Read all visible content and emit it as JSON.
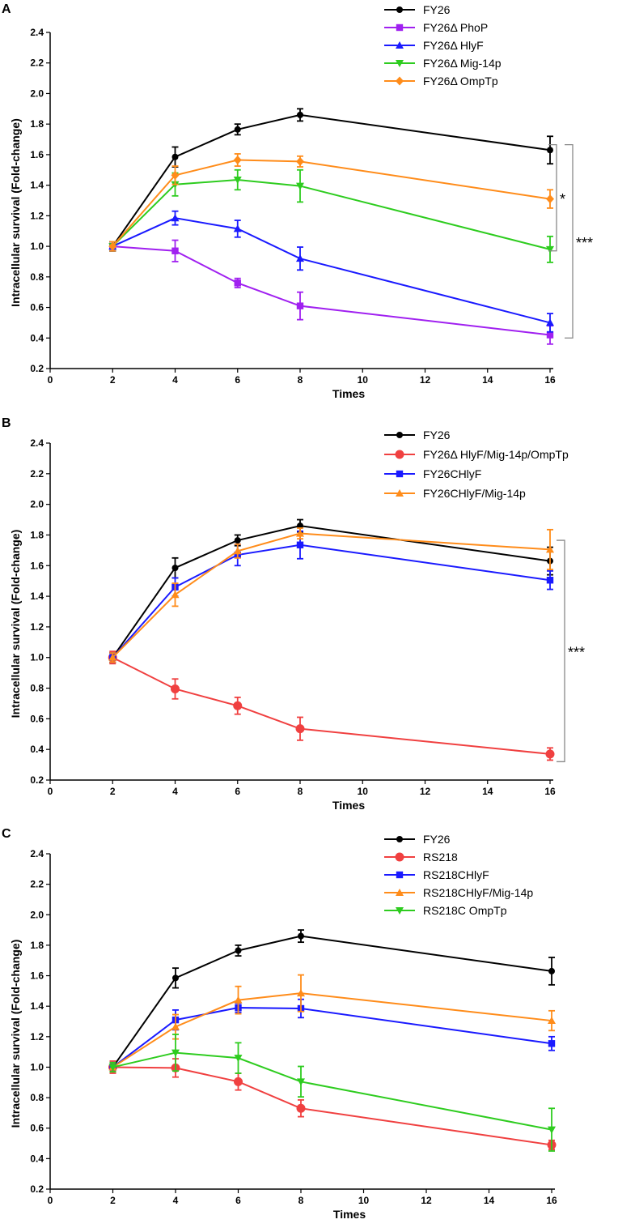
{
  "figure": {
    "chart_data": [
      {
        "type": "line",
        "panel": "A",
        "xlabel": "Times",
        "ylabel": "Intracellular survival (Fold-change)",
        "xlim": [
          0,
          16
        ],
        "ylim": [
          0.2,
          2.4
        ],
        "xticks": [
          0,
          2,
          4,
          6,
          8,
          10,
          12,
          14,
          16
        ],
        "yticks": [
          0.2,
          0.4,
          0.6,
          0.8,
          1.0,
          1.2,
          1.4,
          1.6,
          1.8,
          2.0,
          2.2,
          2.4
        ],
        "ytick_labels": [
          "0.2",
          "0.4",
          "0.6",
          "0.8",
          "1.0",
          "1.2",
          "1.4",
          "1.6",
          "1.8",
          "2.0",
          "2.2",
          "2.4"
        ],
        "x": [
          2,
          4,
          6,
          8,
          16
        ],
        "series": [
          {
            "name": "FY26",
            "color": "#000000",
            "marker": "circle",
            "values": [
              1.0,
              1.585,
              1.765,
              1.86,
              1.63
            ],
            "errors": [
              0.03,
              0.065,
              0.035,
              0.04,
              0.09
            ]
          },
          {
            "name": "FY26Δ PhoP",
            "color": "#a020f0",
            "marker": "square",
            "values": [
              1.0,
              0.97,
              0.76,
              0.61,
              0.42
            ],
            "errors": [
              0.03,
              0.07,
              0.03,
              0.09,
              0.06
            ]
          },
          {
            "name": "FY26Δ HlyF",
            "color": "#1a1aff",
            "marker": "triangle-up",
            "values": [
              1.0,
              1.185,
              1.115,
              0.92,
              0.5
            ],
            "errors": [
              0.03,
              0.045,
              0.055,
              0.075,
              0.06
            ]
          },
          {
            "name": "FY26Δ Mig-14p",
            "color": "#2ecc1f",
            "marker": "triangle-down",
            "values": [
              1.0,
              1.405,
              1.435,
              1.395,
              0.98
            ],
            "errors": [
              0.03,
              0.075,
              0.065,
              0.105,
              0.085
            ]
          },
          {
            "name": "FY26Δ OmpTp",
            "color": "#ff8c1a",
            "marker": "diamond",
            "values": [
              1.0,
              1.465,
              1.565,
              1.555,
              1.31
            ],
            "errors": [
              0.03,
              0.06,
              0.04,
              0.035,
              0.06
            ]
          }
        ],
        "significance": [
          {
            "label": "*",
            "from_y": 1.665,
            "to_y": 0.97
          },
          {
            "label": "***",
            "from_y": 1.665,
            "to_y": 0.4
          }
        ]
      },
      {
        "type": "line",
        "panel": "B",
        "xlabel": "Times",
        "ylabel": "Intracellular survival (Fold-change)",
        "xlim": [
          0,
          16
        ],
        "ylim": [
          0.2,
          2.4
        ],
        "xticks": [
          0,
          2,
          4,
          6,
          8,
          10,
          12,
          14,
          16
        ],
        "yticks": [
          0.2,
          0.4,
          0.6,
          0.8,
          1.0,
          1.2,
          1.4,
          1.6,
          1.8,
          2.0,
          2.2,
          2.4
        ],
        "ytick_labels": [
          "0.2",
          "0.4",
          "0.6",
          "0.8",
          "1.0",
          "1.2",
          "1.4",
          "1.6",
          "1.8",
          "2.0",
          "2.2",
          "2.4"
        ],
        "x": [
          2,
          4,
          6,
          8,
          16
        ],
        "series": [
          {
            "name": "FY26",
            "color": "#000000",
            "marker": "circle",
            "values": [
              1.0,
              1.585,
              1.765,
              1.86,
              1.63
            ],
            "errors": [
              0.03,
              0.065,
              0.035,
              0.04,
              0.09
            ]
          },
          {
            "name": "FY26Δ HlyF/Mig-14p/OmpTp",
            "color": "#f04040",
            "marker": "circle-large",
            "values": [
              1.0,
              0.795,
              0.685,
              0.535,
              0.37
            ],
            "errors": [
              0.04,
              0.065,
              0.055,
              0.075,
              0.04
            ]
          },
          {
            "name": "FY26CHlyF",
            "color": "#1a1aff",
            "marker": "square",
            "values": [
              1.0,
              1.46,
              1.67,
              1.735,
              1.505
            ],
            "errors": [
              0.03,
              0.06,
              0.07,
              0.09,
              0.06
            ]
          },
          {
            "name": "FY26CHlyF/Mig-14p",
            "color": "#ff8c1a",
            "marker": "triangle-up",
            "values": [
              1.0,
              1.41,
              1.695,
              1.81,
              1.705
            ],
            "errors": [
              0.03,
              0.075,
              0.045,
              0.035,
              0.13
            ]
          }
        ],
        "significance": [
          {
            "label": "***",
            "from_y": 1.765,
            "to_y": 0.32
          }
        ]
      },
      {
        "type": "line",
        "panel": "C",
        "xlabel": "Times",
        "ylabel": "Intracellular survival (Fold-change)",
        "xlim": [
          0,
          16
        ],
        "ylim": [
          0.2,
          2.4
        ],
        "xticks": [
          0,
          2,
          4,
          6,
          8,
          10,
          12,
          14,
          16
        ],
        "yticks": [
          0.2,
          0.4,
          0.6,
          0.8,
          1.0,
          1.2,
          1.4,
          1.6,
          1.8,
          2.0,
          2.2,
          2.4
        ],
        "ytick_labels": [
          "0.2",
          "0.4",
          "0.6",
          "0.8",
          "1.0",
          "1.2",
          "1.4",
          "1.6",
          "1.8",
          "2.0",
          "2.2",
          "2.4"
        ],
        "x": [
          2,
          4,
          6,
          8,
          16
        ],
        "series": [
          {
            "name": "FY26",
            "color": "#000000",
            "marker": "circle",
            "values": [
              1.0,
              1.585,
              1.765,
              1.86,
              1.63
            ],
            "errors": [
              0.03,
              0.065,
              0.035,
              0.04,
              0.09
            ]
          },
          {
            "name": "RS218",
            "color": "#f04040",
            "marker": "circle-large",
            "values": [
              1.0,
              0.995,
              0.905,
              0.73,
              0.49
            ],
            "errors": [
              0.04,
              0.06,
              0.055,
              0.055,
              0.03
            ]
          },
          {
            "name": "RS218CHlyF",
            "color": "#1a1aff",
            "marker": "square",
            "values": [
              1.0,
              1.31,
              1.39,
              1.385,
              1.155
            ],
            "errors": [
              0.03,
              0.065,
              0.03,
              0.06,
              0.045
            ]
          },
          {
            "name": "RS218CHlyF/Mig-14p",
            "color": "#ff8c1a",
            "marker": "triangle-up",
            "values": [
              1.0,
              1.265,
              1.44,
              1.485,
              1.305
            ],
            "errors": [
              0.03,
              0.08,
              0.09,
              0.12,
              0.065
            ]
          },
          {
            "name": "RS218C OmpTp",
            "color": "#2ecc1f",
            "marker": "triangle-down",
            "values": [
              1.0,
              1.095,
              1.06,
              0.905,
              0.59
            ],
            "errors": [
              0.03,
              0.12,
              0.1,
              0.1,
              0.14
            ]
          }
        ],
        "significance": []
      }
    ]
  }
}
